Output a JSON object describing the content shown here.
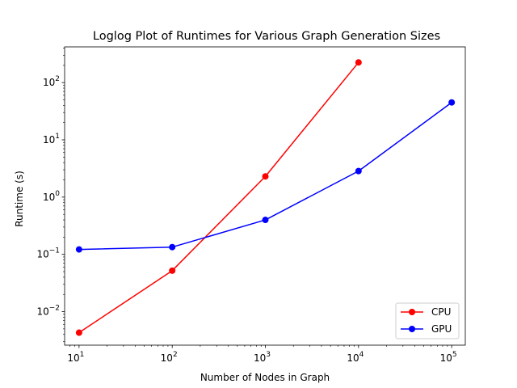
{
  "chart_data": {
    "type": "line",
    "title": "Loglog Plot of Runtimes for Various Graph Generation Sizes",
    "xlabel": "Number of Nodes in Graph",
    "ylabel": "Runtime (s)",
    "xscale": "log",
    "yscale": "log",
    "xlim": [
      7,
      140000
    ],
    "ylim": [
      0.0026,
      420
    ],
    "x_ticks": [
      {
        "value": 10,
        "base": "10",
        "exp": "1"
      },
      {
        "value": 100,
        "base": "10",
        "exp": "2"
      },
      {
        "value": 1000,
        "base": "10",
        "exp": "3"
      },
      {
        "value": 10000,
        "base": "10",
        "exp": "4"
      },
      {
        "value": 100000,
        "base": "10",
        "exp": "5"
      }
    ],
    "y_ticks": [
      {
        "value": 0.01,
        "base": "10",
        "exp": "−2"
      },
      {
        "value": 0.1,
        "base": "10",
        "exp": "−1"
      },
      {
        "value": 1,
        "base": "10",
        "exp": "0"
      },
      {
        "value": 10,
        "base": "10",
        "exp": "1"
      },
      {
        "value": 100,
        "base": "10",
        "exp": "2"
      }
    ],
    "grid": false,
    "legend_position": "lower-right",
    "series": [
      {
        "name": "CPU",
        "color": "#ff0000",
        "marker": "circle",
        "x": [
          10,
          100,
          1000,
          10000
        ],
        "y": [
          0.0043,
          0.052,
          2.3,
          225
        ]
      },
      {
        "name": "GPU",
        "color": "#0000ff",
        "marker": "circle",
        "x": [
          10,
          100,
          1000,
          10000,
          100000
        ],
        "y": [
          0.122,
          0.134,
          0.4,
          2.85,
          45
        ]
      }
    ]
  }
}
